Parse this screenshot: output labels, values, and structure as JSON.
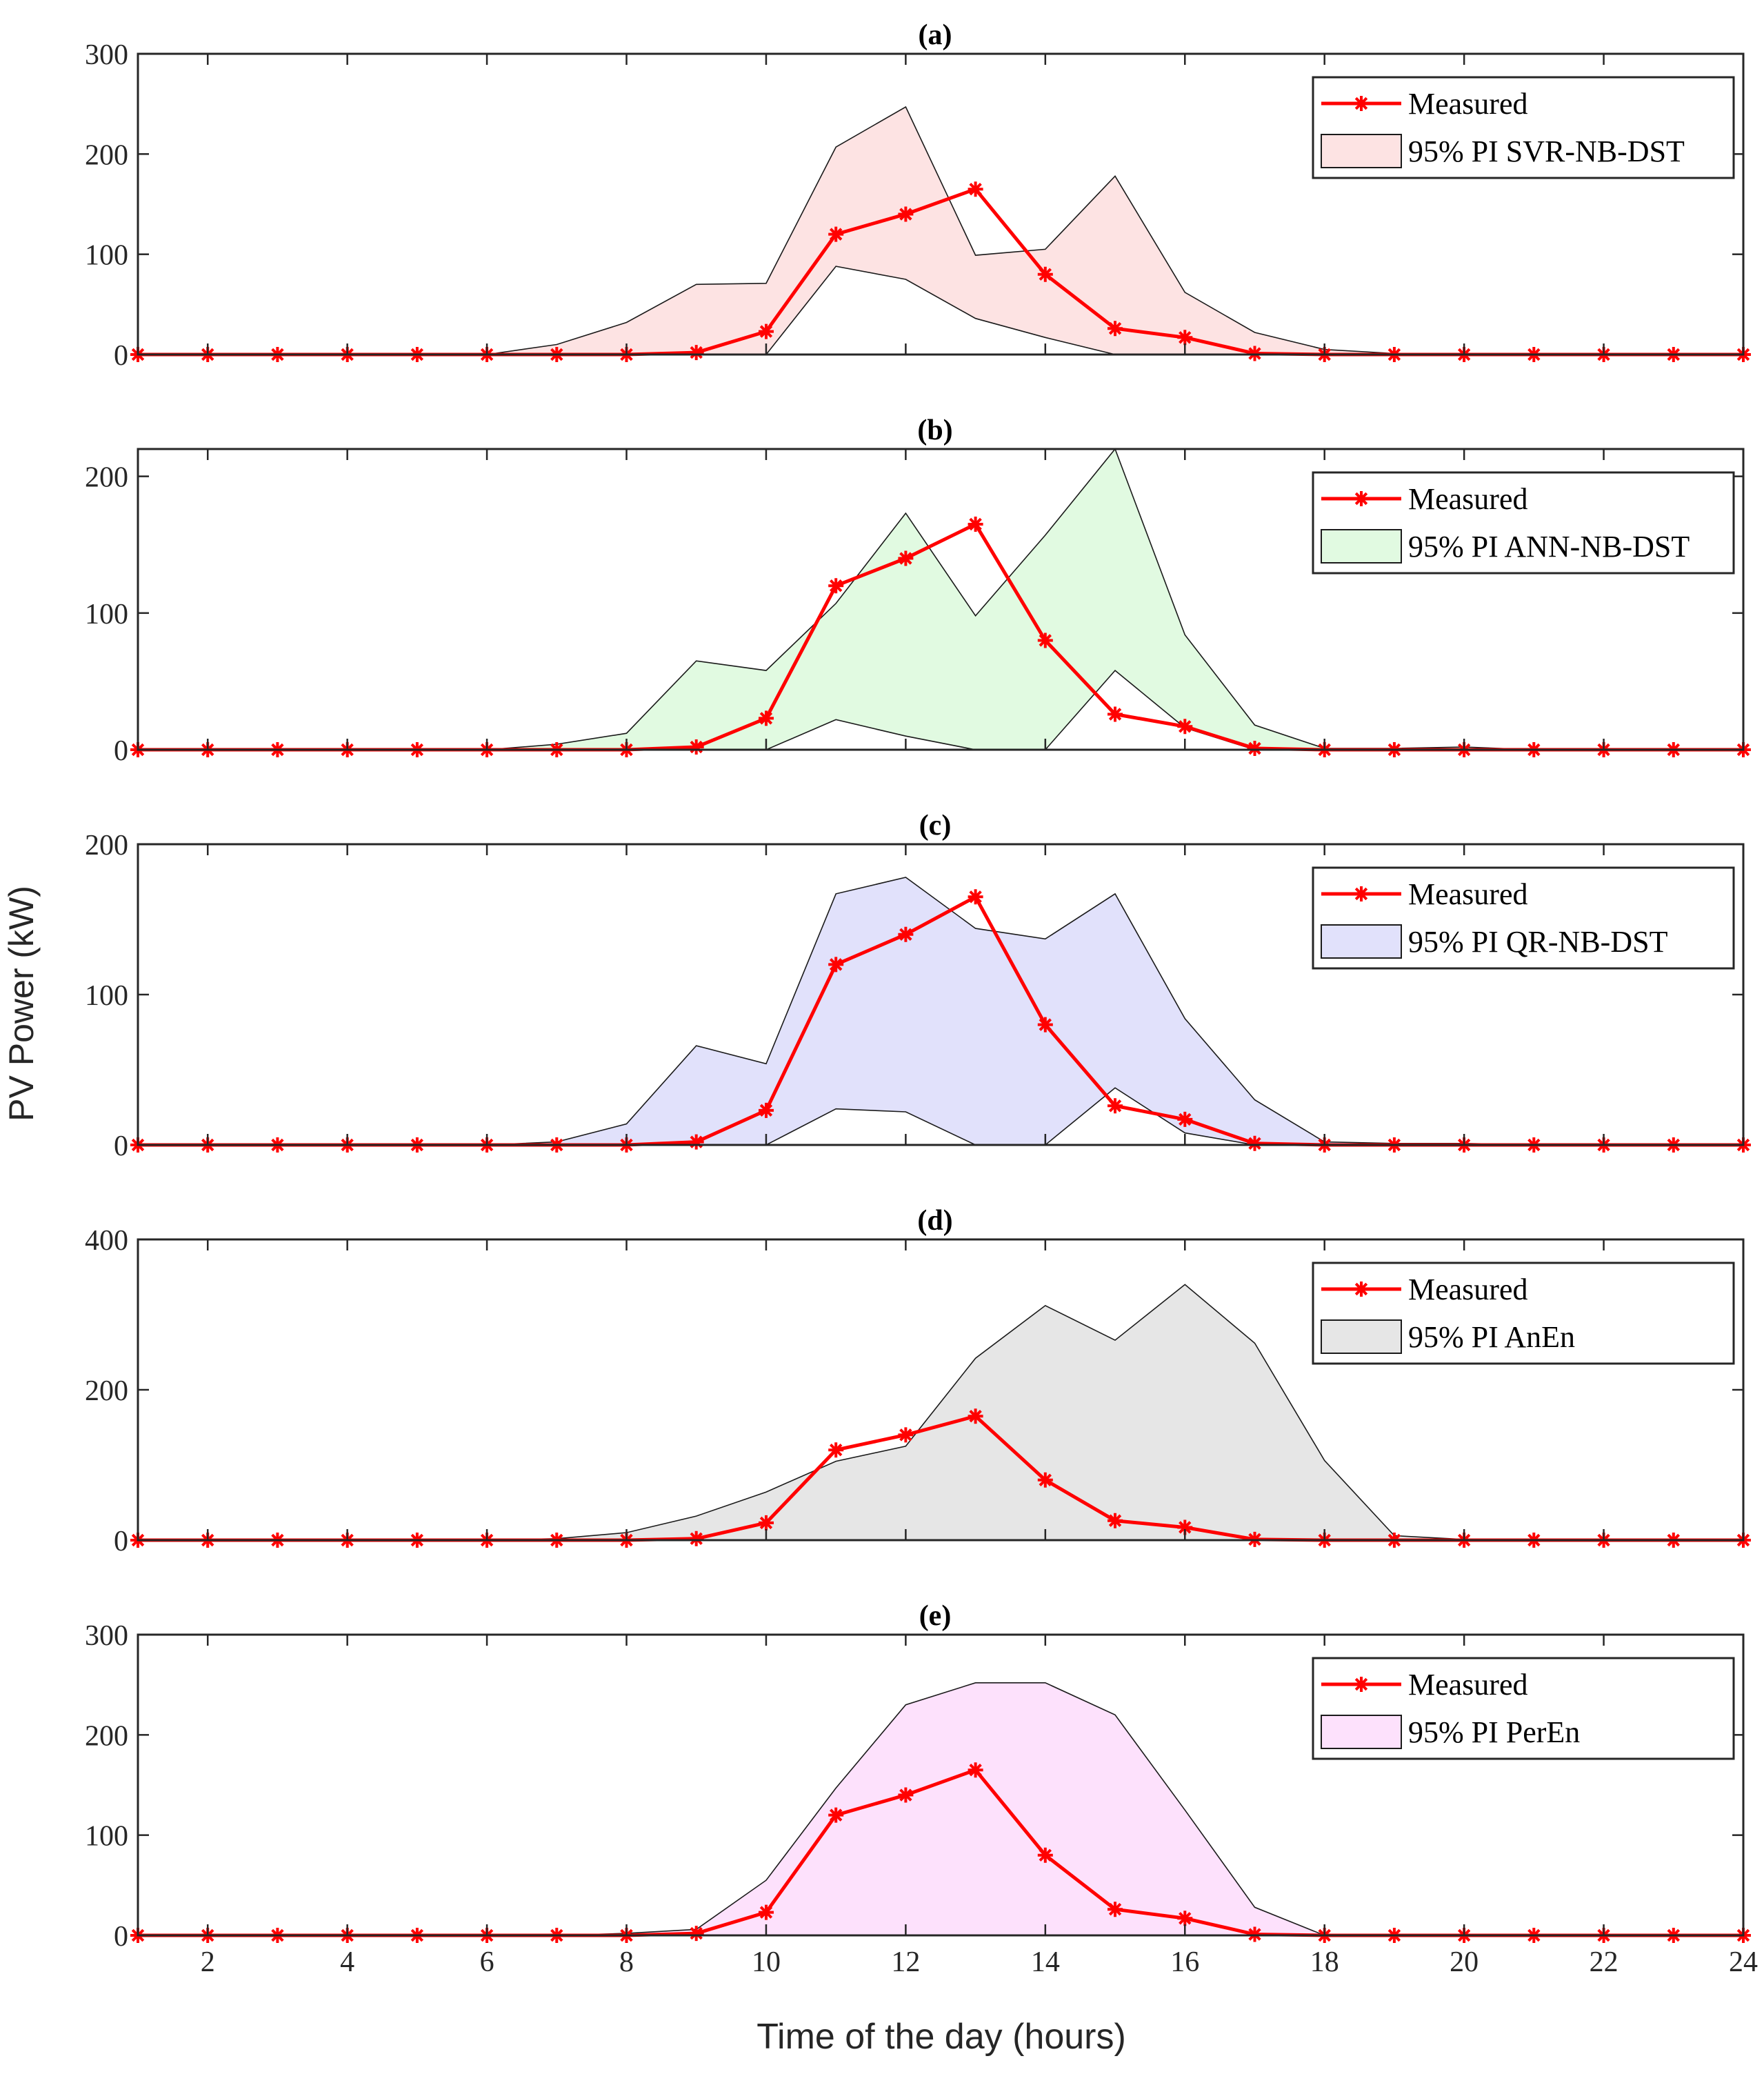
{
  "figure": {
    "ylabel": "PV Power (kW)",
    "xlabel": "Time of the day (hours)"
  },
  "colors": {
    "measured": "#ff0000",
    "axis": "#262626",
    "bound": "#1a1a1a"
  },
  "chart_data": [
    {
      "type": "area",
      "title": "(a)",
      "x": [
        1,
        2,
        3,
        4,
        5,
        6,
        7,
        8,
        9,
        10,
        11,
        12,
        13,
        14,
        15,
        16,
        17,
        18,
        19,
        20,
        21,
        22,
        23,
        24
      ],
      "xlim": [
        1,
        24
      ],
      "ylim": [
        0,
        300
      ],
      "yticks": [
        0,
        100,
        200,
        300
      ],
      "xticks": [
        2,
        4,
        6,
        8,
        10,
        12,
        14,
        16,
        18,
        20,
        22,
        24
      ],
      "show_xtick_labels": false,
      "legend_position": "top-right",
      "fill_color": "#fde3e3",
      "series": [
        {
          "name": "Measured",
          "role": "measured",
          "values": [
            0,
            0,
            0,
            0,
            0,
            0,
            0,
            0,
            2,
            23,
            120,
            140,
            165,
            80,
            26,
            17,
            1,
            0,
            0,
            0,
            0,
            0,
            0,
            0
          ]
        },
        {
          "name": "95% PI SVR-NB-DST",
          "role": "interval",
          "upper": [
            0,
            0,
            0,
            0,
            0,
            0,
            10,
            32,
            70,
            71,
            207,
            247,
            99,
            105,
            178,
            62,
            22,
            5,
            1,
            1,
            0,
            0,
            0,
            0
          ],
          "lower": [
            0,
            0,
            0,
            0,
            0,
            0,
            0,
            0,
            0,
            0,
            88,
            75,
            36,
            17,
            0,
            0,
            0,
            0,
            0,
            0,
            0,
            0,
            0,
            0
          ]
        }
      ]
    },
    {
      "type": "area",
      "title": "(b)",
      "x": [
        1,
        2,
        3,
        4,
        5,
        6,
        7,
        8,
        9,
        10,
        11,
        12,
        13,
        14,
        15,
        16,
        17,
        18,
        19,
        20,
        21,
        22,
        23,
        24
      ],
      "xlim": [
        1,
        24
      ],
      "ylim": [
        0,
        220
      ],
      "yticks": [
        0,
        100,
        200
      ],
      "xticks": [
        2,
        4,
        6,
        8,
        10,
        12,
        14,
        16,
        18,
        20,
        22,
        24
      ],
      "show_xtick_labels": false,
      "legend_position": "top-right",
      "fill_color": "#e1fae1",
      "series": [
        {
          "name": "Measured",
          "role": "measured",
          "values": [
            0,
            0,
            0,
            0,
            0,
            0,
            0,
            0,
            2,
            23,
            120,
            140,
            165,
            80,
            26,
            17,
            1,
            0,
            0,
            0,
            0,
            0,
            0,
            0
          ]
        },
        {
          "name": "95% PI ANN-NB-DST",
          "role": "interval",
          "upper": [
            0,
            0,
            0,
            0,
            0,
            0,
            4,
            12,
            65,
            58,
            107,
            173,
            98,
            157,
            220,
            84,
            18,
            1,
            1,
            2,
            0,
            0,
            0,
            0
          ],
          "lower": [
            0,
            0,
            0,
            0,
            0,
            0,
            0,
            0,
            0,
            0,
            22,
            10,
            0,
            0,
            58,
            16,
            0,
            0,
            0,
            0,
            0,
            0,
            0,
            0
          ]
        }
      ]
    },
    {
      "type": "area",
      "title": "(c)",
      "x": [
        1,
        2,
        3,
        4,
        5,
        6,
        7,
        8,
        9,
        10,
        11,
        12,
        13,
        14,
        15,
        16,
        17,
        18,
        19,
        20,
        21,
        22,
        23,
        24
      ],
      "xlim": [
        1,
        24
      ],
      "ylim": [
        0,
        200
      ],
      "yticks": [
        0,
        100,
        200
      ],
      "xticks": [
        2,
        4,
        6,
        8,
        10,
        12,
        14,
        16,
        18,
        20,
        22,
        24
      ],
      "show_xtick_labels": false,
      "legend_position": "top-right",
      "fill_color": "#e1e1fb",
      "series": [
        {
          "name": "Measured",
          "role": "measured",
          "values": [
            0,
            0,
            0,
            0,
            0,
            0,
            0,
            0,
            2,
            23,
            120,
            140,
            165,
            80,
            26,
            17,
            1,
            0,
            0,
            0,
            0,
            0,
            0,
            0
          ]
        },
        {
          "name": "95% PI QR-NB-DST",
          "role": "interval",
          "upper": [
            0,
            0,
            0,
            0,
            0,
            0,
            2,
            14,
            66,
            54,
            167,
            178,
            144,
            137,
            167,
            84,
            30,
            2,
            1,
            1,
            0,
            0,
            0,
            0
          ],
          "lower": [
            0,
            0,
            0,
            0,
            0,
            0,
            0,
            0,
            0,
            0,
            24,
            22,
            0,
            0,
            38,
            8,
            0,
            0,
            0,
            0,
            0,
            0,
            0,
            0
          ]
        }
      ]
    },
    {
      "type": "area",
      "title": "(d)",
      "x": [
        1,
        2,
        3,
        4,
        5,
        6,
        7,
        8,
        9,
        10,
        11,
        12,
        13,
        14,
        15,
        16,
        17,
        18,
        19,
        20,
        21,
        22,
        23,
        24
      ],
      "xlim": [
        1,
        24
      ],
      "ylim": [
        0,
        400
      ],
      "yticks": [
        0,
        200,
        400
      ],
      "xticks": [
        2,
        4,
        6,
        8,
        10,
        12,
        14,
        16,
        18,
        20,
        22,
        24
      ],
      "show_xtick_labels": false,
      "legend_position": "top-right",
      "fill_color": "#e6e6e6",
      "series": [
        {
          "name": "Measured",
          "role": "measured",
          "values": [
            0,
            0,
            0,
            0,
            0,
            0,
            0,
            0,
            2,
            23,
            120,
            140,
            165,
            80,
            26,
            17,
            1,
            0,
            0,
            0,
            0,
            0,
            0,
            0
          ]
        },
        {
          "name": "95% PI AnEn",
          "role": "interval",
          "upper": [
            0,
            0,
            0,
            0,
            0,
            0,
            2,
            10,
            32,
            64,
            105,
            125,
            242,
            312,
            266,
            340,
            262,
            106,
            6,
            1,
            0,
            0,
            0,
            0
          ],
          "lower": [
            0,
            0,
            0,
            0,
            0,
            0,
            0,
            0,
            0,
            0,
            0,
            0,
            0,
            0,
            0,
            0,
            0,
            0,
            0,
            0,
            0,
            0,
            0,
            0
          ]
        }
      ]
    },
    {
      "type": "area",
      "title": "(e)",
      "x": [
        1,
        2,
        3,
        4,
        5,
        6,
        7,
        8,
        9,
        10,
        11,
        12,
        13,
        14,
        15,
        16,
        17,
        18,
        19,
        20,
        21,
        22,
        23,
        24
      ],
      "xlim": [
        1,
        24
      ],
      "ylim": [
        0,
        300
      ],
      "yticks": [
        0,
        100,
        200,
        300
      ],
      "xticks": [
        2,
        4,
        6,
        8,
        10,
        12,
        14,
        16,
        18,
        20,
        22,
        24
      ],
      "show_xtick_labels": true,
      "legend_position": "top-right",
      "fill_color": "#fde1fc",
      "series": [
        {
          "name": "Measured",
          "role": "measured",
          "values": [
            0,
            0,
            0,
            0,
            0,
            0,
            0,
            0,
            2,
            23,
            120,
            140,
            165,
            80,
            26,
            17,
            1,
            0,
            0,
            0,
            0,
            0,
            0,
            0
          ]
        },
        {
          "name": "95% PI PerEn",
          "role": "interval",
          "upper": [
            0,
            0,
            0,
            0,
            0,
            0,
            0,
            2,
            6,
            55,
            147,
            230,
            252,
            252,
            220,
            125,
            28,
            0,
            0,
            0,
            0,
            0,
            0,
            0
          ],
          "lower": [
            0,
            0,
            0,
            0,
            0,
            0,
            0,
            0,
            0,
            0,
            0,
            0,
            0,
            0,
            0,
            0,
            0,
            0,
            0,
            0,
            0,
            0,
            0,
            0
          ]
        }
      ]
    }
  ]
}
